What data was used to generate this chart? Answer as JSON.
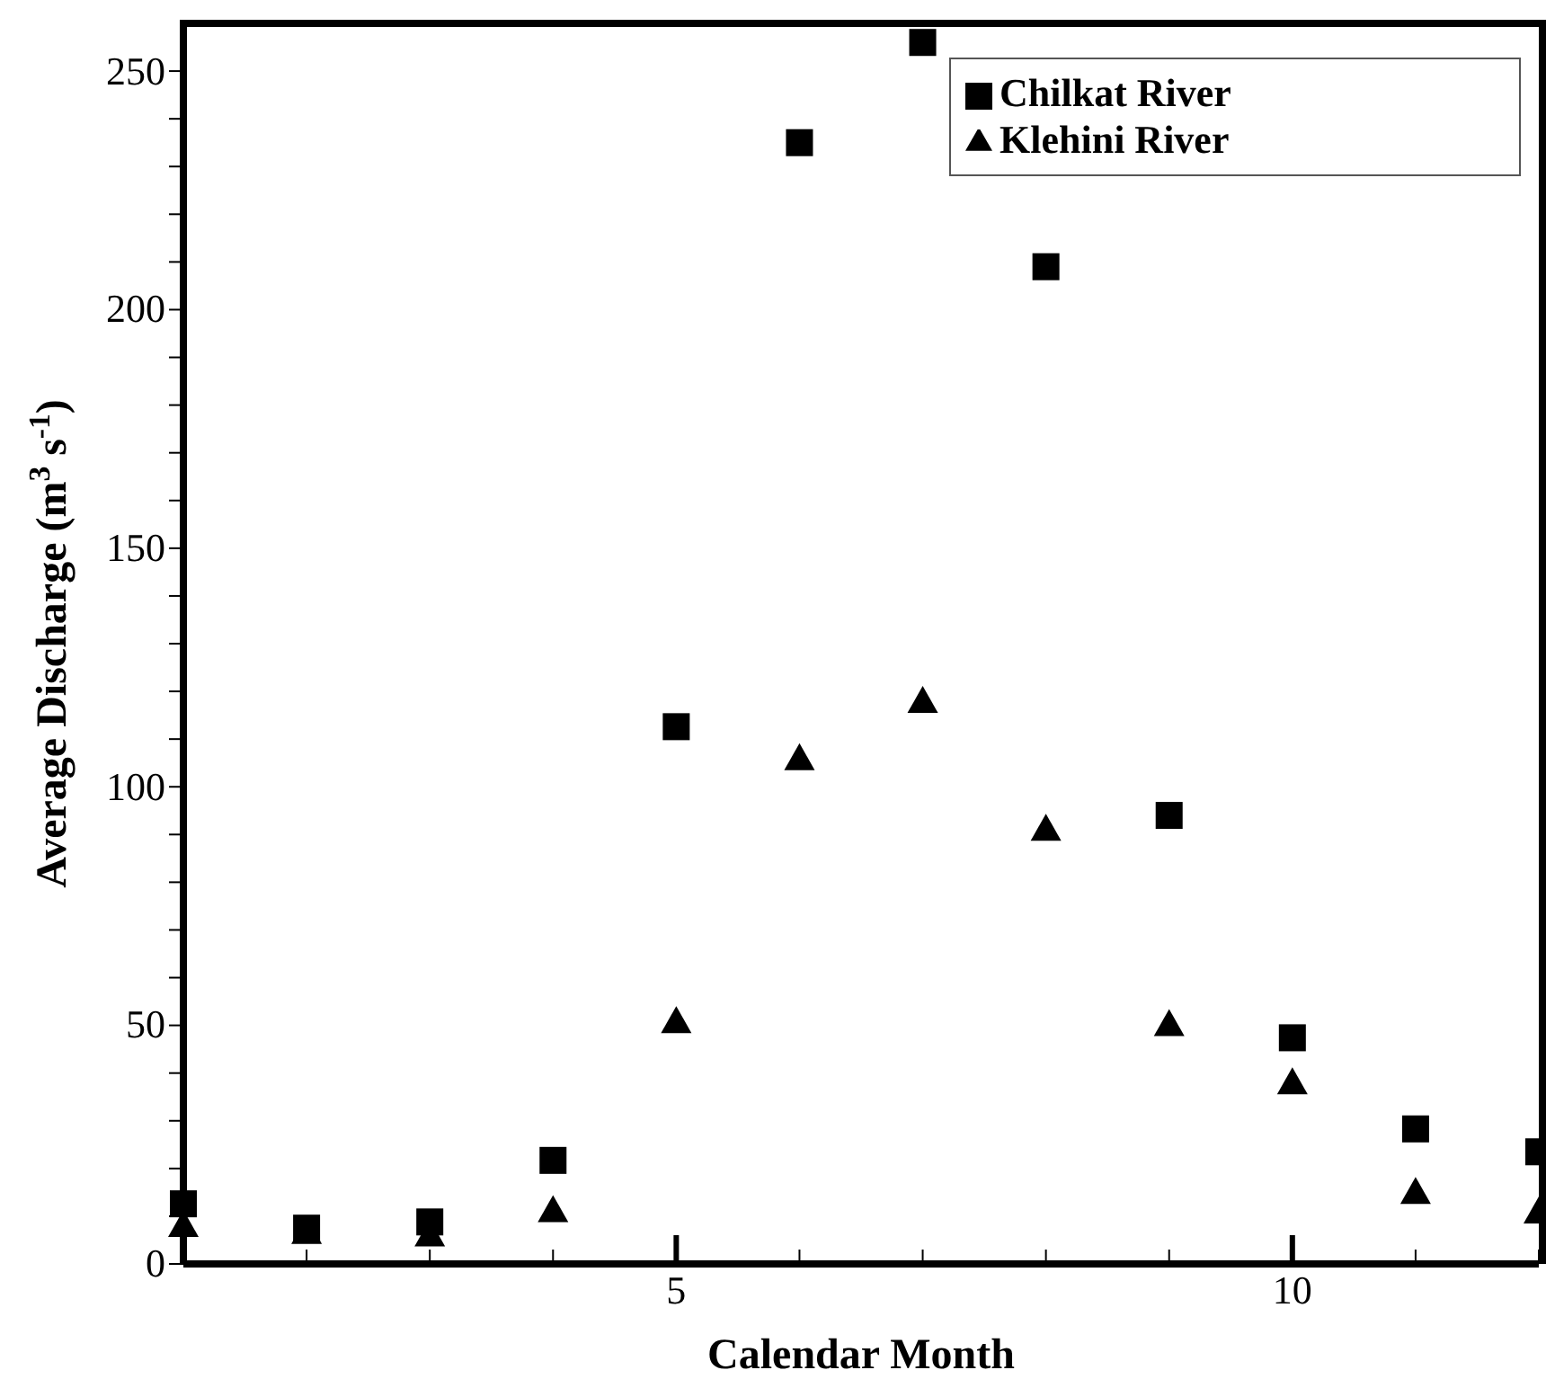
{
  "chart_data": {
    "type": "scatter",
    "xlabel": "Calendar Month",
    "ylabel": "Average Discharge (m$^{3}$ s$^{-1}$)",
    "x": [
      1,
      2,
      3,
      4,
      5,
      6,
      7,
      8,
      9,
      10,
      11,
      12
    ],
    "series": [
      {
        "name": "Chilkat River",
        "color": "#000000",
        "marker": "square",
        "values": [
          12.6,
          7.5,
          8.8,
          21.7,
          112.6,
          235,
          256,
          209,
          94,
          47.4,
          28.3,
          23.5
        ]
      },
      {
        "name": "Klehini River",
        "color": "#000000",
        "marker": "triangle",
        "values": [
          8.5,
          7,
          6.5,
          11.6,
          51.2,
          106.3,
          118.3,
          91.5,
          50.6,
          38.4,
          15.4,
          11.3
        ]
      }
    ],
    "xlim": [
      1,
      12
    ],
    "xticks": [
      {
        "value": 1,
        "label": null
      },
      {
        "value": 2,
        "label": null
      },
      {
        "value": 3,
        "label": null
      },
      {
        "value": 4,
        "label": null
      },
      5,
      {
        "value": 6,
        "label": null
      },
      {
        "value": 7,
        "label": null
      },
      {
        "value": 8,
        "label": null
      },
      {
        "value": 9,
        "label": null
      },
      10,
      {
        "value": 11,
        "label": null
      },
      {
        "value": 12,
        "label": null
      }
    ],
    "ylim": [
      0,
      260
    ],
    "yticks": [
      0,
      {
        "value": 10,
        "label": null
      },
      {
        "value": 20,
        "label": null
      },
      {
        "value": 30,
        "label": null
      },
      {
        "value": 40,
        "label": null
      },
      50,
      {
        "value": 60,
        "label": null
      },
      {
        "value": 70,
        "label": null
      },
      {
        "value": 80,
        "label": null
      },
      {
        "value": 90,
        "label": null
      },
      100,
      {
        "value": 110,
        "label": null
      },
      {
        "value": 120,
        "label": null
      },
      {
        "value": 130,
        "label": null
      },
      {
        "value": 140,
        "label": null
      },
      150,
      {
        "value": 160,
        "label": null
      },
      {
        "value": 170,
        "label": null
      },
      {
        "value": 180,
        "label": null
      },
      {
        "value": 190,
        "label": null
      },
      200,
      {
        "value": 210,
        "label": null
      },
      {
        "value": 220,
        "label": null
      },
      {
        "value": 230,
        "label": null
      },
      {
        "value": 240,
        "label": null
      },
      250
    ],
    "grid": false,
    "legend": "top right"
  }
}
